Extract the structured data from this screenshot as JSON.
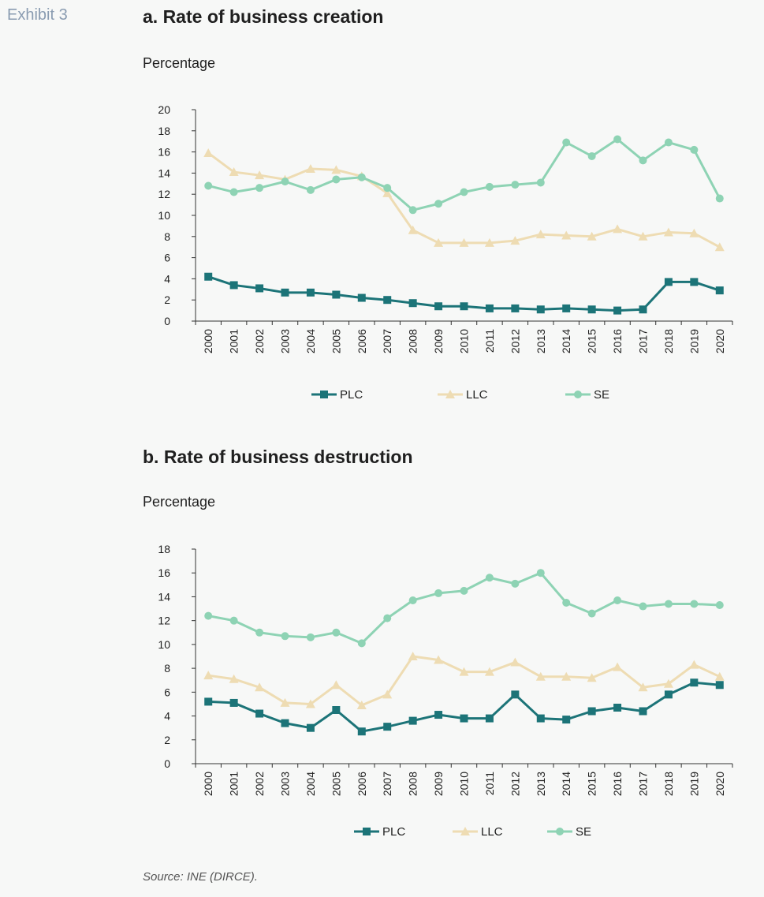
{
  "exhibit_label": "Exhibit 3",
  "source": "Source: INE (DIRCE).",
  "colors": {
    "PLC": "#1c7478",
    "LLC": "#eedcb3",
    "SE": "#8ed3b4"
  },
  "chart_data": [
    {
      "type": "line",
      "title": "a. Rate of business creation",
      "ylabel": "Percentage",
      "ylim": [
        0,
        20
      ],
      "yticks": [
        0,
        2,
        4,
        6,
        8,
        10,
        12,
        14,
        16,
        18,
        20
      ],
      "categories": [
        "2000",
        "2001",
        "2002",
        "2003",
        "2004",
        "2005",
        "2006",
        "2007",
        "2008",
        "2009",
        "2010",
        "2011",
        "2012",
        "2013",
        "2014",
        "2015",
        "2016",
        "2017",
        "2018",
        "2019",
        "2020"
      ],
      "legend_position": "bottom",
      "series": [
        {
          "name": "PLC",
          "marker": "square",
          "values": [
            4.2,
            3.4,
            3.1,
            2.7,
            2.7,
            2.5,
            2.2,
            2.0,
            1.7,
            1.4,
            1.4,
            1.2,
            1.2,
            1.1,
            1.2,
            1.1,
            1.0,
            1.1,
            3.7,
            3.7,
            2.9
          ]
        },
        {
          "name": "LLC",
          "marker": "triangle",
          "values": [
            15.9,
            14.1,
            13.8,
            13.4,
            14.4,
            14.3,
            13.7,
            12.1,
            8.6,
            7.4,
            7.4,
            7.4,
            7.6,
            8.2,
            8.1,
            8.0,
            8.7,
            8.0,
            8.4,
            8.3,
            7.0
          ]
        },
        {
          "name": "SE",
          "marker": "circle",
          "values": [
            12.8,
            12.2,
            12.6,
            13.2,
            12.4,
            13.4,
            13.6,
            12.6,
            10.5,
            11.1,
            12.2,
            12.7,
            12.9,
            13.1,
            16.9,
            15.6,
            17.2,
            15.2,
            16.9,
            16.2,
            11.6
          ]
        }
      ]
    },
    {
      "type": "line",
      "title": "b. Rate of business destruction",
      "ylabel": "Percentage",
      "ylim": [
        0,
        18
      ],
      "yticks": [
        0,
        2,
        4,
        6,
        8,
        10,
        12,
        14,
        16,
        18
      ],
      "categories": [
        "2000",
        "2001",
        "2002",
        "2003",
        "2004",
        "2005",
        "2006",
        "2007",
        "2008",
        "2009",
        "2010",
        "2011",
        "2012",
        "2013",
        "2014",
        "2015",
        "2016",
        "2017",
        "2018",
        "2019",
        "2020"
      ],
      "legend_position": "bottom",
      "series": [
        {
          "name": "PLC",
          "marker": "square",
          "values": [
            5.2,
            5.1,
            4.2,
            3.4,
            3.0,
            4.5,
            2.7,
            3.1,
            3.6,
            4.1,
            3.8,
            3.8,
            5.8,
            3.8,
            3.7,
            4.4,
            4.7,
            4.4,
            5.8,
            6.8,
            6.6
          ]
        },
        {
          "name": "LLC",
          "marker": "triangle",
          "values": [
            7.4,
            7.1,
            6.4,
            5.1,
            5.0,
            6.6,
            4.9,
            5.8,
            9.0,
            8.7,
            7.7,
            7.7,
            8.5,
            7.3,
            7.3,
            7.2,
            8.1,
            6.4,
            6.7,
            8.3,
            7.3
          ]
        },
        {
          "name": "SE",
          "marker": "circle",
          "values": [
            12.4,
            12.0,
            11.0,
            10.7,
            10.6,
            11.0,
            10.1,
            12.2,
            13.7,
            14.3,
            14.5,
            15.6,
            15.1,
            16.0,
            13.5,
            12.6,
            13.7,
            13.2,
            13.4,
            13.4,
            13.3
          ]
        }
      ]
    }
  ]
}
